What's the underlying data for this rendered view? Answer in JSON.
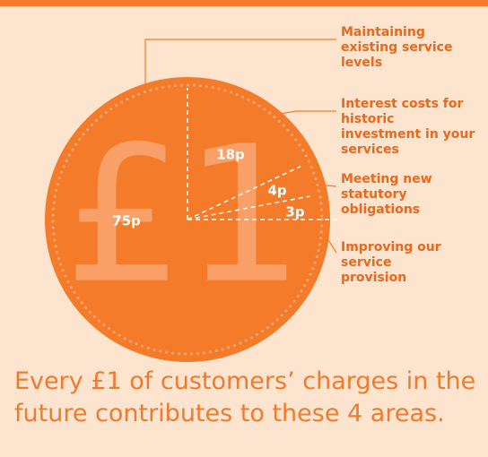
{
  "chart_data": {
    "type": "pie",
    "categories": [
      "Maintaining existing service levels",
      "Interest costs for historic investment in your services",
      "Meeting new statutory obligations",
      "Improving our service provision"
    ],
    "values": [
      75,
      18,
      4,
      3
    ],
    "value_labels": [
      "75p",
      "18p",
      "4p",
      "3p"
    ],
    "coin_symbol": "£1",
    "color": "#f47b2a",
    "caption": [
      "Every £1 of customers’ charges in the",
      "future contributes to these 4 areas."
    ]
  }
}
